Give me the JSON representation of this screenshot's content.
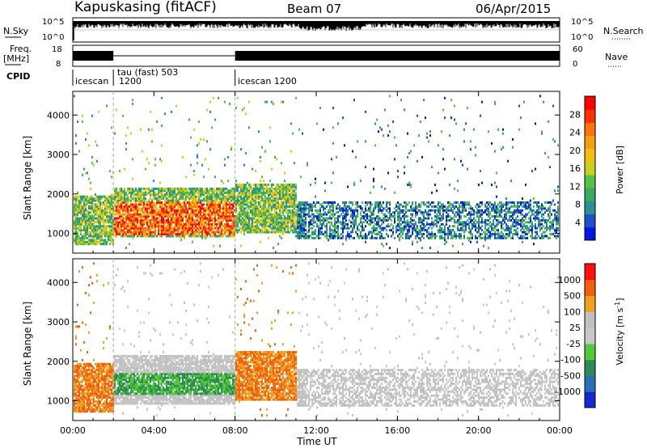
{
  "header": {
    "station": "Kapuskasing (fitACF)",
    "beam": "Beam 07",
    "date": "06/Apr/2015"
  },
  "strip_labels": {
    "nsky": "N.Sky",
    "nsky_ticks": [
      "10^5",
      "10^0"
    ],
    "nsearch": "N.Search",
    "freq_line1": "Freq.",
    "freq_line2": "[MHz]",
    "freq_ticks": [
      "18",
      "8"
    ],
    "nave": "Nave",
    "nave_ticks": [
      "60",
      "0"
    ],
    "cpid": "CPID"
  },
  "cpid_segments": [
    {
      "label": "icescan",
      "start_hour": 0.0
    },
    {
      "label": "1200",
      "start_hour": 2.0
    },
    {
      "label": "tau (fast) 503",
      "start_hour": 2.0
    },
    {
      "label": "icescan 1200",
      "start_hour": 8.0
    }
  ],
  "chart_data": [
    {
      "type": "heatmap",
      "panel": "power",
      "xlabel": "",
      "ylabel": "Slant Range [km]",
      "xlim_hours": [
        0,
        24
      ],
      "ylim_km": [
        500,
        4600
      ],
      "y_ticks": [
        "1000",
        "2000",
        "3000",
        "4000"
      ],
      "colorbar_label": "Power [dB]",
      "colorbar_ticks": [
        "28",
        "24",
        "20",
        "16",
        "12",
        "8",
        "4"
      ],
      "colors": [
        "#0018e0",
        "#1e50c8",
        "#2a9090",
        "#3aaa60",
        "#58c048",
        "#c8d020",
        "#f0c010",
        "#f0a010",
        "#ff7010",
        "#ff3000",
        "#ff0000"
      ]
    },
    {
      "type": "heatmap",
      "panel": "velocity",
      "xlabel": "Time UT",
      "ylabel": "Slant Range [km]",
      "xlim_hours": [
        0,
        24
      ],
      "ylim_km": [
        500,
        4600
      ],
      "y_ticks": [
        "1000",
        "2000",
        "3000",
        "4000"
      ],
      "x_ticks": [
        "00:00",
        "04:00",
        "08:00",
        "12:00",
        "16:00",
        "20:00",
        "00:00"
      ],
      "colorbar_label": "Velocity [m s",
      "colorbar_label_sup": "-1",
      "colorbar_ticks": [
        "1000",
        "500",
        "100",
        "25",
        "-25",
        "-100",
        "-500",
        "-1000"
      ],
      "colors": [
        "#1828d0",
        "#2a70b8",
        "#2f8a55",
        "#52c83a",
        "#c8c8c8",
        "#c0c0c0",
        "#f0a020",
        "#f06010",
        "#ff1010"
      ]
    }
  ]
}
